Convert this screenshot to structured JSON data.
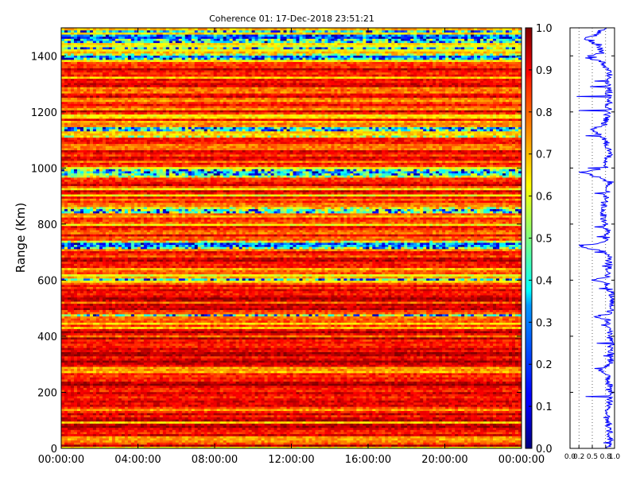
{
  "chart_data": [
    {
      "type": "heatmap",
      "title": "Coherence 01: 17-Dec-2018 23:51:21",
      "ylabel": "Range (Km)",
      "xlabel": "",
      "x_ticks": [
        "00:00:00",
        "04:00:00",
        "08:00:00",
        "12:00:00",
        "16:00:00",
        "20:00:00",
        "00:00:00"
      ],
      "y_ticks": [
        0,
        200,
        400,
        600,
        800,
        1000,
        1200,
        1400
      ],
      "ylim": [
        0,
        1500
      ],
      "xlim_hours": [
        0,
        24
      ],
      "value_range": [
        0,
        1
      ],
      "colormap": "jet",
      "range_profile_km": [
        [
          0,
          0.87
        ],
        [
          50,
          0.9
        ],
        [
          100,
          0.86
        ],
        [
          140,
          0.84
        ],
        [
          160,
          0.88
        ],
        [
          180,
          0.9
        ],
        [
          200,
          0.93
        ],
        [
          240,
          0.88
        ],
        [
          260,
          0.87
        ],
        [
          280,
          0.63
        ],
        [
          290,
          0.82
        ],
        [
          300,
          0.9
        ],
        [
          350,
          0.92
        ],
        [
          400,
          0.9
        ],
        [
          460,
          0.85
        ],
        [
          470,
          0.55
        ],
        [
          480,
          0.86
        ],
        [
          500,
          0.95
        ],
        [
          540,
          0.96
        ],
        [
          560,
          0.9
        ],
        [
          590,
          0.83
        ],
        [
          600,
          0.45
        ],
        [
          610,
          0.82
        ],
        [
          650,
          0.88
        ],
        [
          700,
          0.84
        ],
        [
          720,
          0.25
        ],
        [
          730,
          0.55
        ],
        [
          740,
          0.8
        ],
        [
          780,
          0.85
        ],
        [
          800,
          0.78
        ],
        [
          850,
          0.74
        ],
        [
          900,
          0.8
        ],
        [
          950,
          0.92
        ],
        [
          985,
          0.3
        ],
        [
          1000,
          0.78
        ],
        [
          1050,
          0.88
        ],
        [
          1100,
          0.8
        ],
        [
          1140,
          0.5
        ],
        [
          1150,
          0.75
        ],
        [
          1200,
          0.86
        ],
        [
          1240,
          0.88
        ],
        [
          1300,
          0.85
        ],
        [
          1340,
          0.9
        ],
        [
          1380,
          0.72
        ],
        [
          1395,
          0.35
        ],
        [
          1410,
          0.7
        ],
        [
          1440,
          0.65
        ],
        [
          1460,
          0.3
        ],
        [
          1475,
          0.6
        ],
        [
          1500,
          0.75
        ]
      ]
    },
    {
      "type": "colorbar",
      "ticks": [
        "0.0",
        "0.1",
        "0.2",
        "0.3",
        "0.4",
        "0.5",
        "0.6",
        "0.7",
        "0.8",
        "0.9",
        "1.0"
      ],
      "range": [
        0,
        1
      ]
    },
    {
      "type": "line",
      "series_color": "#0000ff",
      "x_ticks": [
        "0.0",
        "0.2",
        "0.5",
        "0.8",
        "1.0"
      ],
      "xlim": [
        0,
        1
      ],
      "ylim": [
        0,
        1500
      ],
      "grid_x": [
        0.2,
        0.5,
        0.8
      ],
      "spikes": [
        [
          1455,
          0.55
        ],
        [
          1395,
          0.6
        ],
        [
          1310,
          0.55
        ],
        [
          1290,
          0.45
        ],
        [
          1255,
          0.15
        ],
        [
          1205,
          0.2
        ],
        [
          1115,
          0.35
        ],
        [
          1000,
          0.4
        ],
        [
          985,
          0.2
        ],
        [
          910,
          0.55
        ],
        [
          845,
          0.75
        ],
        [
          790,
          0.55
        ],
        [
          755,
          0.6
        ],
        [
          725,
          0.2
        ],
        [
          700,
          0.55
        ],
        [
          650,
          0.72
        ],
        [
          598,
          0.6
        ],
        [
          570,
          0.65
        ],
        [
          470,
          0.55
        ],
        [
          440,
          0.7
        ],
        [
          375,
          0.6
        ],
        [
          330,
          0.75
        ],
        [
          285,
          0.55
        ],
        [
          230,
          0.8
        ],
        [
          210,
          0.8
        ],
        [
          185,
          0.35
        ],
        [
          110,
          0.75
        ],
        [
          80,
          0.8
        ],
        [
          20,
          0.75
        ]
      ]
    }
  ],
  "colors": {
    "line": "#0000ff",
    "axis": "#000000",
    "background": "#ffffff"
  }
}
